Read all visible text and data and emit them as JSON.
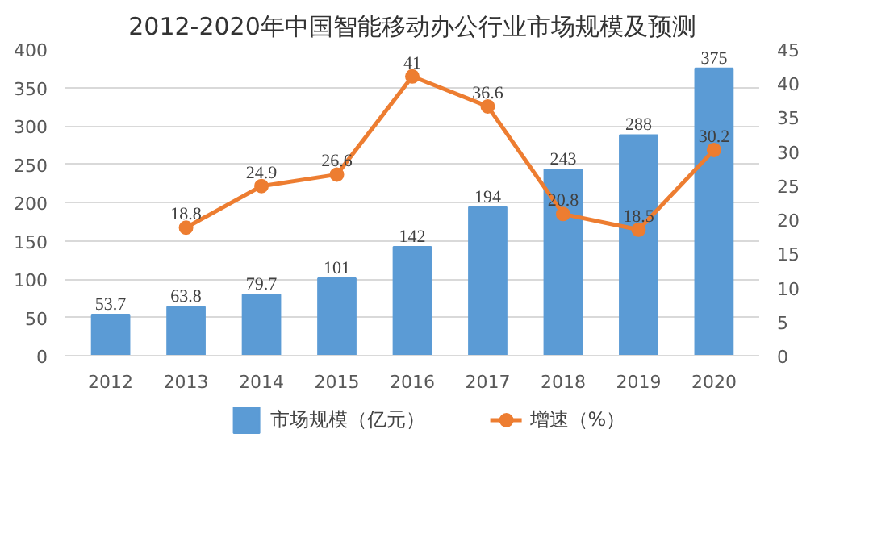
{
  "chart_data": {
    "type": "bar",
    "title": "2012-2020年中国智能移动办公行业市场规模及预测",
    "categories": [
      "2012",
      "2013",
      "2014",
      "2015",
      "2016",
      "2017",
      "2018",
      "2019",
      "2020"
    ],
    "series": [
      {
        "name": "市场规模（亿元）",
        "color": "#5b9bd5",
        "values": [
          53.7,
          63.8,
          79.7,
          101,
          142,
          194,
          243,
          288,
          375
        ]
      },
      {
        "name": "增速（%）",
        "type": "line",
        "axis": "y2",
        "color": "#ed7d31",
        "marker": "circle",
        "values": [
          null,
          18.8,
          24.9,
          26.6,
          41,
          36.6,
          20.8,
          18.5,
          30.2
        ]
      }
    ],
    "ylim": [
      0,
      400
    ],
    "yticks": [
      0,
      50,
      100,
      150,
      200,
      250,
      300,
      350,
      400
    ],
    "y2lim": [
      0,
      45
    ],
    "y2ticks": [
      0,
      5,
      10,
      15,
      20,
      25,
      30,
      35,
      40,
      45
    ],
    "grid": "y",
    "legend": "bottom",
    "data_labels": true
  }
}
